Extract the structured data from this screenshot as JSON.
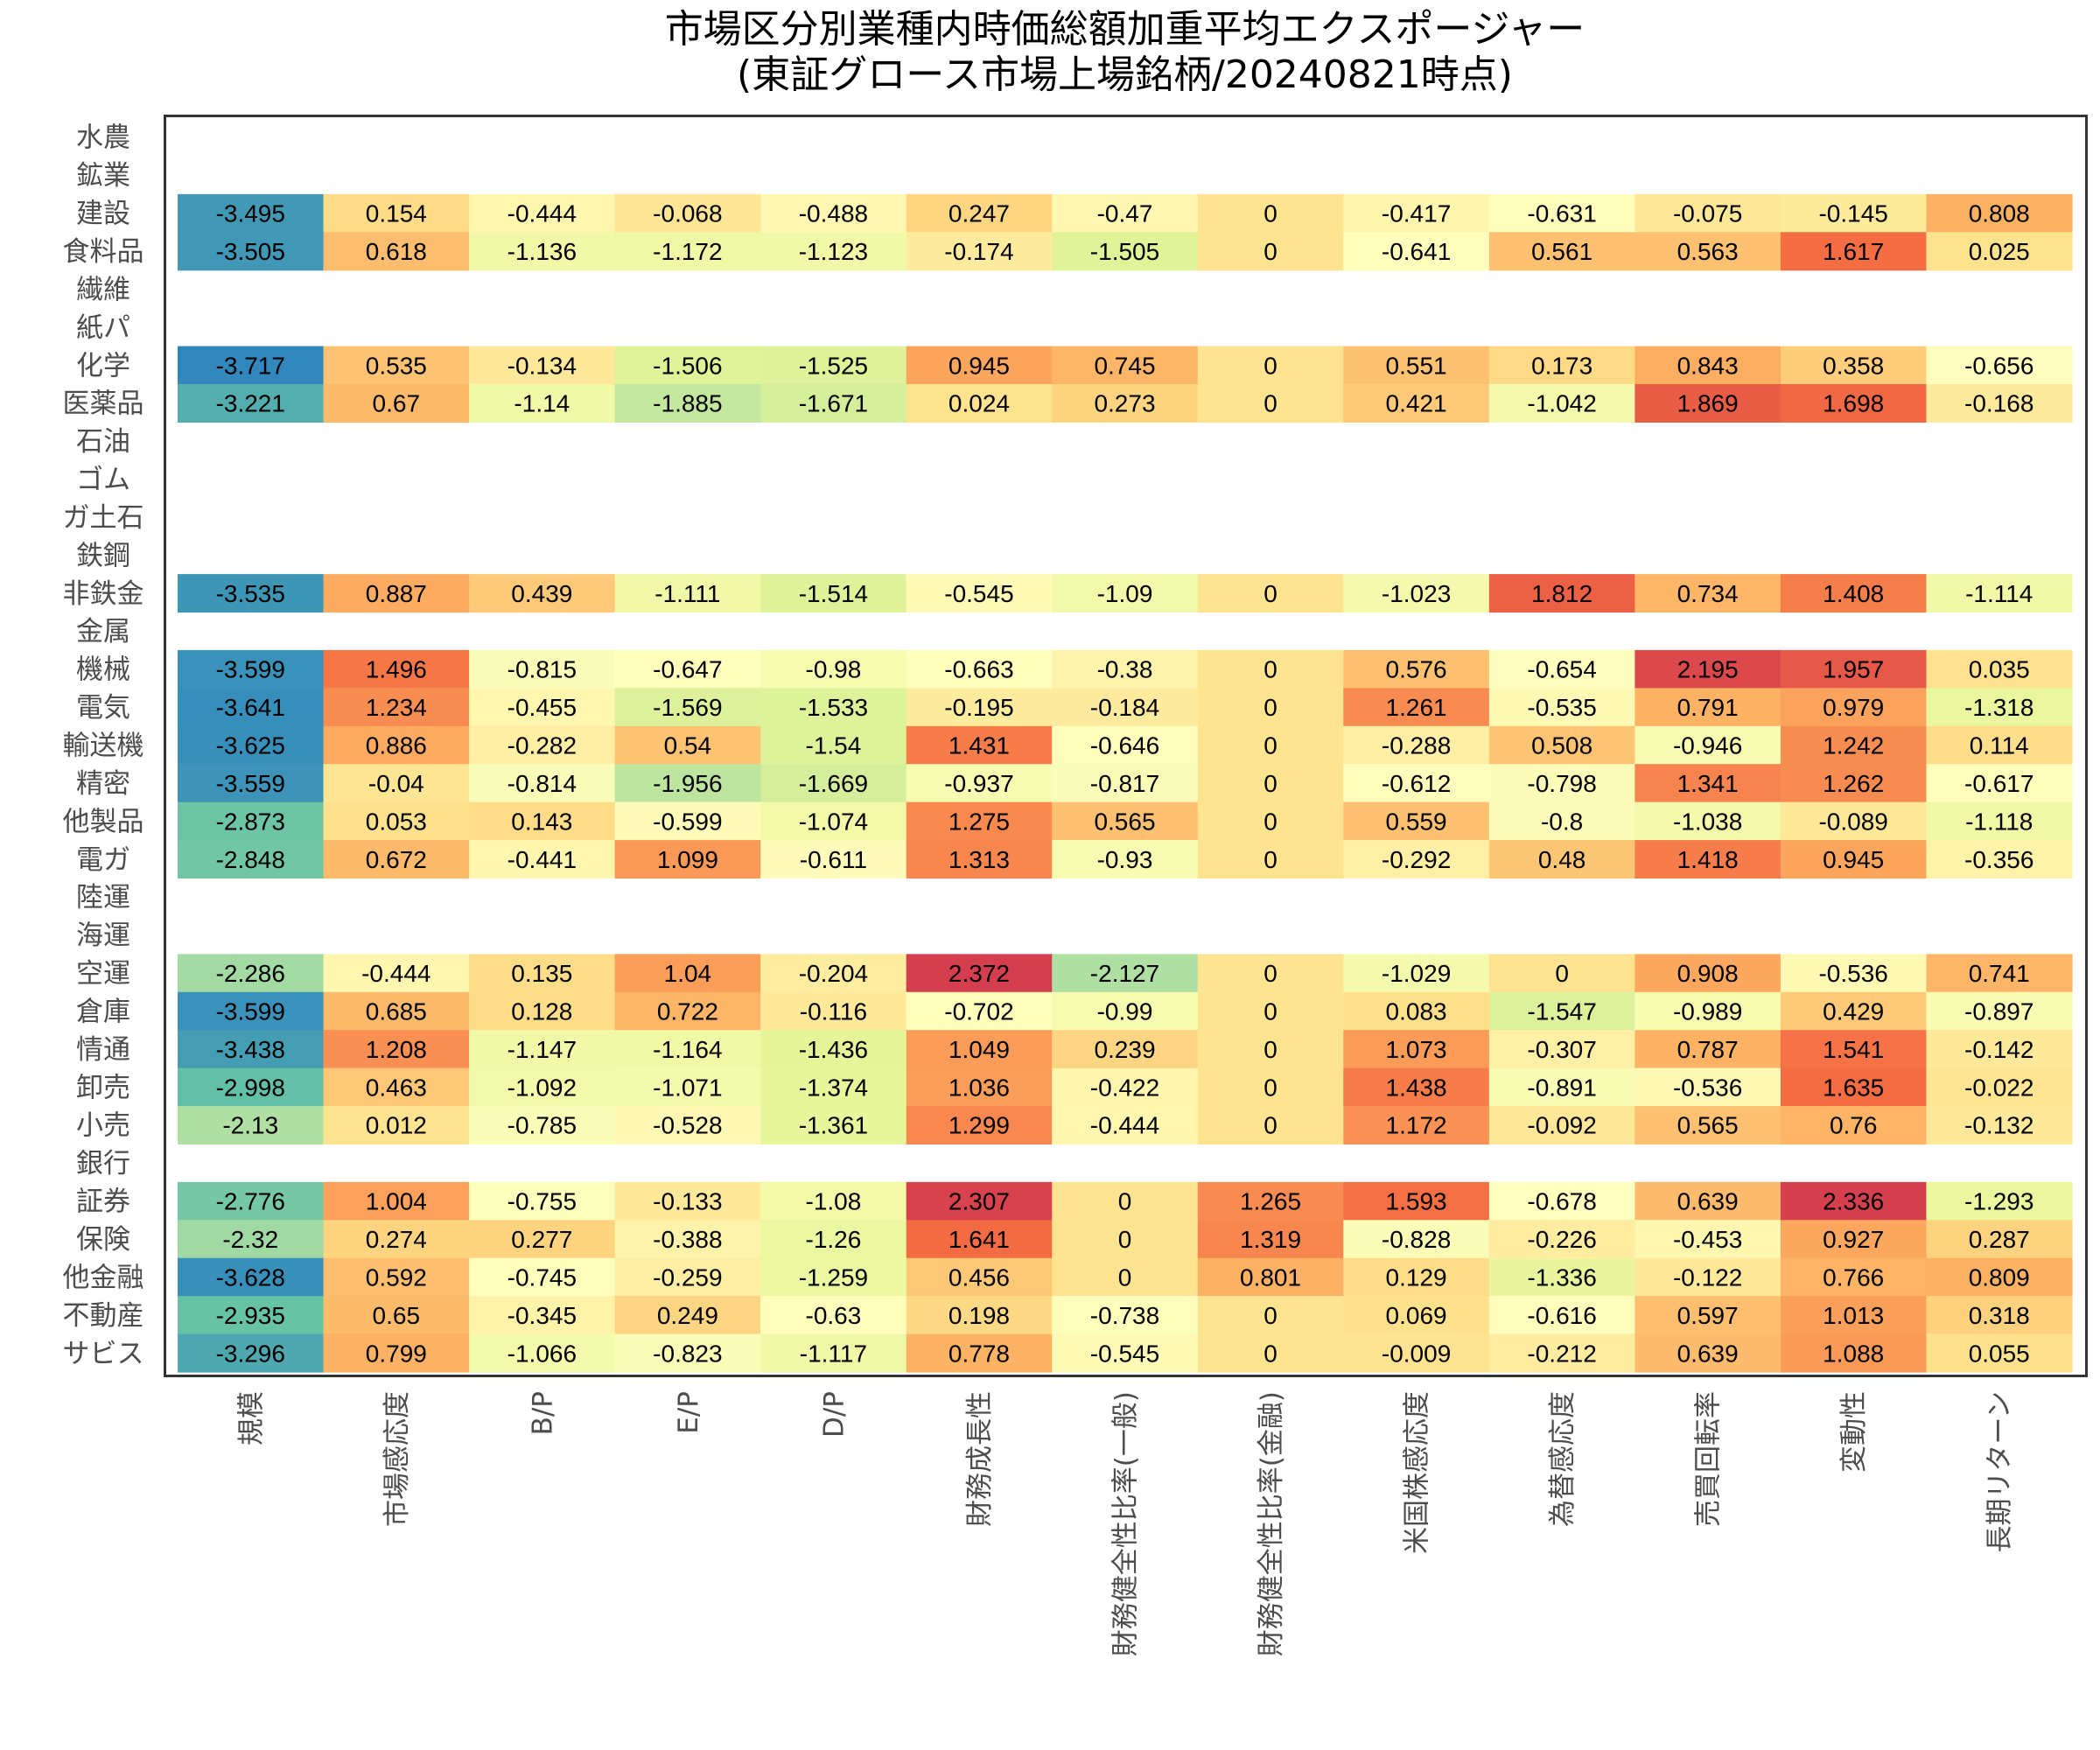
{
  "chart_data": {
    "type": "heatmap",
    "title": "市場区分別業種内時価総額加重平均エクスポージャー",
    "subtitle": "(東証グロース市場上場銘柄/20240821時点)",
    "xlabel": "",
    "ylabel": "",
    "grid": false,
    "legend": "none",
    "color_scale": {
      "palette": [
        "#3288bd",
        "#66c2a5",
        "#abdda4",
        "#e6f598",
        "#ffffbf",
        "#fee08b",
        "#fdae61",
        "#f46d43",
        "#d53e4f"
      ],
      "min": -3.717,
      "max": 2.372
    },
    "columns": [
      "規模",
      "市場感応度",
      "B/P",
      "E/P",
      "D/P",
      "財務成長性",
      "財務健全性比率(一般)",
      "財務健全性比率(金融)",
      "米国株感応度",
      "為替感応度",
      "売買回転率",
      "変動性",
      "長期リターン"
    ],
    "rows": [
      {
        "label": "水農",
        "values": null
      },
      {
        "label": "鉱業",
        "values": null
      },
      {
        "label": "建設",
        "values": [
          -3.495,
          0.154,
          -0.444,
          -0.068,
          -0.488,
          0.247,
          -0.47,
          0,
          -0.417,
          -0.631,
          -0.075,
          -0.145,
          0.808
        ]
      },
      {
        "label": "食料品",
        "values": [
          -3.505,
          0.618,
          -1.136,
          -1.172,
          -1.123,
          -0.174,
          -1.505,
          0,
          -0.641,
          0.561,
          0.563,
          1.617,
          0.025
        ]
      },
      {
        "label": "繊維",
        "values": null
      },
      {
        "label": "紙パ",
        "values": null
      },
      {
        "label": "化学",
        "values": [
          -3.717,
          0.535,
          -0.134,
          -1.506,
          -1.525,
          0.945,
          0.745,
          0,
          0.551,
          0.173,
          0.843,
          0.358,
          -0.656
        ]
      },
      {
        "label": "医薬品",
        "values": [
          -3.221,
          0.67,
          -1.14,
          -1.885,
          -1.671,
          0.024,
          0.273,
          0,
          0.421,
          -1.042,
          1.869,
          1.698,
          -0.168
        ]
      },
      {
        "label": "石油",
        "values": null
      },
      {
        "label": "ゴム",
        "values": null
      },
      {
        "label": "ガ土石",
        "values": null
      },
      {
        "label": "鉄鋼",
        "values": null
      },
      {
        "label": "非鉄金",
        "values": [
          -3.535,
          0.887,
          0.439,
          -1.111,
          -1.514,
          -0.545,
          -1.09,
          0,
          -1.023,
          1.812,
          0.734,
          1.408,
          -1.114
        ]
      },
      {
        "label": "金属",
        "values": null
      },
      {
        "label": "機械",
        "values": [
          -3.599,
          1.496,
          -0.815,
          -0.647,
          -0.98,
          -0.663,
          -0.38,
          0,
          0.576,
          -0.654,
          2.195,
          1.957,
          0.035
        ]
      },
      {
        "label": "電気",
        "values": [
          -3.641,
          1.234,
          -0.455,
          -1.569,
          -1.533,
          -0.195,
          -0.184,
          0,
          1.261,
          -0.535,
          0.791,
          0.979,
          -1.318
        ]
      },
      {
        "label": "輸送機",
        "values": [
          -3.625,
          0.886,
          -0.282,
          0.54,
          -1.54,
          1.431,
          -0.646,
          0,
          -0.288,
          0.508,
          -0.946,
          1.242,
          0.114
        ]
      },
      {
        "label": "精密",
        "values": [
          -3.559,
          -0.04,
          -0.814,
          -1.956,
          -1.669,
          -0.937,
          -0.817,
          0,
          -0.612,
          -0.798,
          1.341,
          1.262,
          -0.617
        ]
      },
      {
        "label": "他製品",
        "values": [
          -2.873,
          0.053,
          0.143,
          -0.599,
          -1.074,
          1.275,
          0.565,
          0,
          0.559,
          -0.8,
          -1.038,
          -0.089,
          -1.118
        ]
      },
      {
        "label": "電ガ",
        "values": [
          -2.848,
          0.672,
          -0.441,
          1.099,
          -0.611,
          1.313,
          -0.93,
          0,
          -0.292,
          0.48,
          1.418,
          0.945,
          -0.356
        ]
      },
      {
        "label": "陸運",
        "values": null
      },
      {
        "label": "海運",
        "values": null
      },
      {
        "label": "空運",
        "values": [
          -2.286,
          -0.444,
          0.135,
          1.04,
          -0.204,
          2.372,
          -2.127,
          0,
          -1.029,
          0,
          0.908,
          -0.536,
          0.741
        ]
      },
      {
        "label": "倉庫",
        "values": [
          -3.599,
          0.685,
          0.128,
          0.722,
          -0.116,
          -0.702,
          -0.99,
          0,
          0.083,
          -1.547,
          -0.989,
          0.429,
          -0.897
        ]
      },
      {
        "label": "情通",
        "values": [
          -3.438,
          1.208,
          -1.147,
          -1.164,
          -1.436,
          1.049,
          0.239,
          0,
          1.073,
          -0.307,
          0.787,
          1.541,
          -0.142
        ]
      },
      {
        "label": "卸売",
        "values": [
          -2.998,
          0.463,
          -1.092,
          -1.071,
          -1.374,
          1.036,
          -0.422,
          0,
          1.438,
          -0.891,
          -0.536,
          1.635,
          -0.022
        ]
      },
      {
        "label": "小売",
        "values": [
          -2.13,
          0.012,
          -0.785,
          -0.528,
          -1.361,
          1.299,
          -0.444,
          0,
          1.172,
          -0.092,
          0.565,
          0.76,
          -0.132
        ]
      },
      {
        "label": "銀行",
        "values": null
      },
      {
        "label": "証券",
        "values": [
          -2.776,
          1.004,
          -0.755,
          -0.133,
          -1.08,
          2.307,
          0,
          1.265,
          1.593,
          -0.678,
          0.639,
          2.336,
          -1.293
        ]
      },
      {
        "label": "保険",
        "values": [
          -2.32,
          0.274,
          0.277,
          -0.388,
          -1.26,
          1.641,
          0,
          1.319,
          -0.828,
          -0.226,
          -0.453,
          0.927,
          0.287
        ]
      },
      {
        "label": "他金融",
        "values": [
          -3.628,
          0.592,
          -0.745,
          -0.259,
          -1.259,
          0.456,
          0,
          0.801,
          0.129,
          -1.336,
          -0.122,
          0.766,
          0.809
        ]
      },
      {
        "label": "不動産",
        "values": [
          -2.935,
          0.65,
          -0.345,
          0.249,
          -0.63,
          0.198,
          -0.738,
          0,
          0.069,
          -0.616,
          0.597,
          1.013,
          0.318
        ]
      },
      {
        "label": "サビス",
        "values": [
          -3.296,
          0.799,
          -1.066,
          -0.823,
          -1.117,
          0.778,
          -0.545,
          0,
          -0.009,
          -0.212,
          0.639,
          1.088,
          0.055
        ]
      }
    ]
  }
}
